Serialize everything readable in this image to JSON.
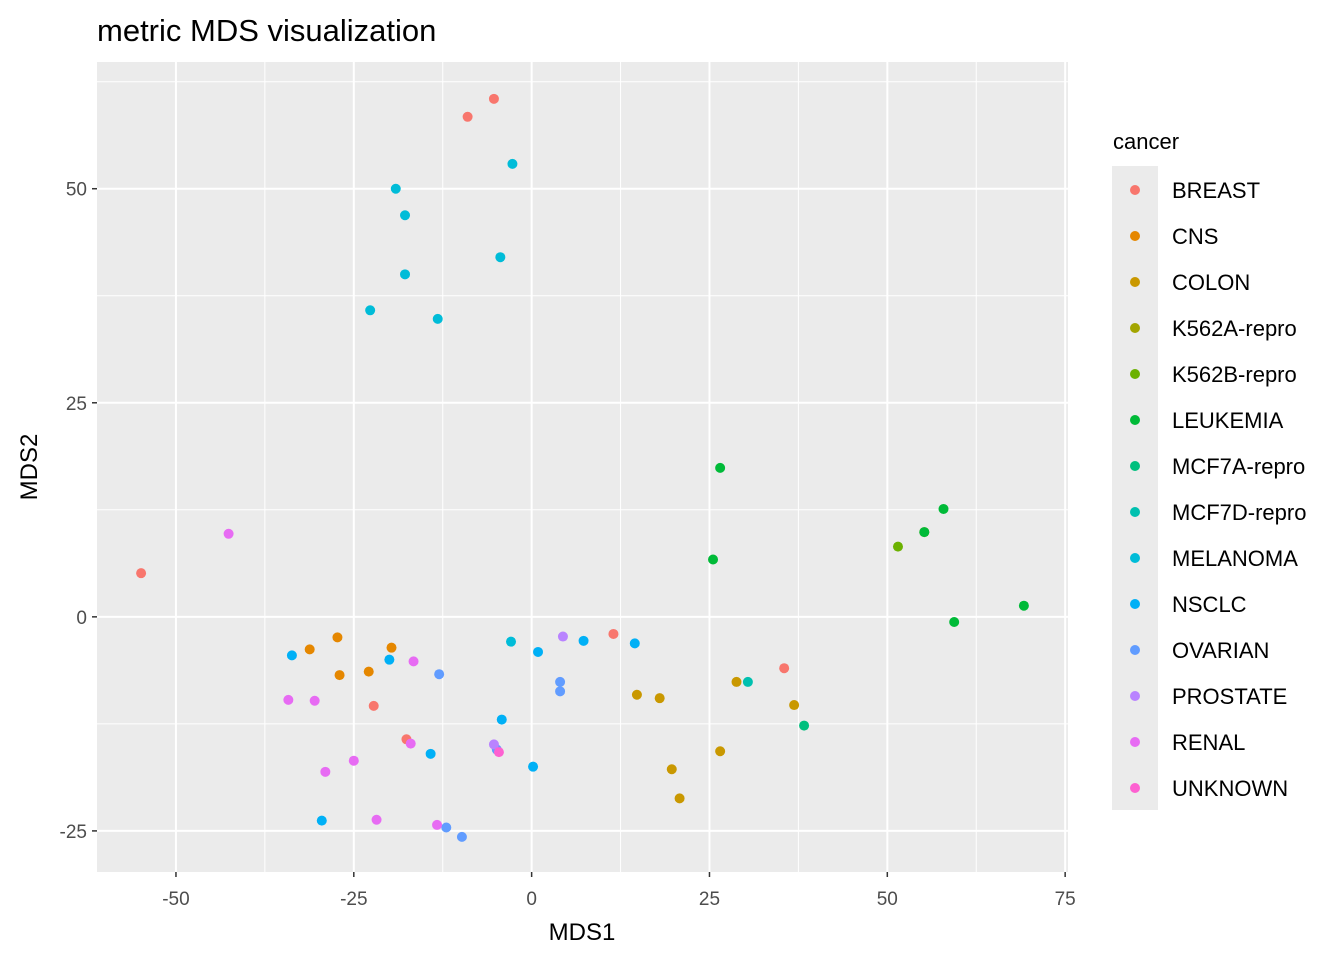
{
  "chart_data": {
    "type": "scatter",
    "title": "metric MDS visualization",
    "xlabel": "MDS1",
    "ylabel": "MDS2",
    "xlim": [
      -61.1,
      75.4
    ],
    "ylim": [
      -29.8,
      64.8
    ],
    "xticks": [
      -50,
      -25,
      0,
      25,
      50,
      75
    ],
    "yticks": [
      -25,
      0,
      25,
      50
    ],
    "grid": true,
    "legend": {
      "title": "cancer",
      "placement": "right"
    },
    "series": [
      {
        "name": "BREAST",
        "color": "#F8766D",
        "points": [
          [
            -5.3,
            60.5
          ],
          [
            -9.0,
            58.4
          ],
          [
            -54.9,
            5.1
          ],
          [
            -22.2,
            -10.4
          ],
          [
            -17.6,
            -14.3
          ],
          [
            11.5,
            -2.0
          ],
          [
            35.5,
            -6.0
          ]
        ]
      },
      {
        "name": "CNS",
        "color": "#E58700",
        "points": [
          [
            -31.2,
            -3.8
          ],
          [
            -27.3,
            -2.4
          ],
          [
            -19.7,
            -3.6
          ],
          [
            -27.0,
            -6.8
          ],
          [
            -22.9,
            -6.4
          ]
        ]
      },
      {
        "name": "COLON",
        "color": "#C99800",
        "points": [
          [
            14.8,
            -9.1
          ],
          [
            18.0,
            -9.5
          ],
          [
            28.8,
            -7.6
          ],
          [
            36.9,
            -10.3
          ],
          [
            26.5,
            -15.7
          ],
          [
            19.7,
            -17.8
          ],
          [
            20.8,
            -21.2
          ]
        ]
      },
      {
        "name": "K562A-repro",
        "color": "#A3A500",
        "points": [
          [
            55.2,
            9.9
          ]
        ]
      },
      {
        "name": "K562B-repro",
        "color": "#6BB100",
        "points": [
          [
            51.5,
            8.2
          ]
        ]
      },
      {
        "name": "LEUKEMIA",
        "color": "#00BA38",
        "points": [
          [
            26.5,
            17.4
          ],
          [
            25.5,
            6.7
          ],
          [
            57.9,
            12.6
          ],
          [
            55.2,
            9.9
          ],
          [
            69.2,
            1.3
          ],
          [
            59.4,
            -0.6
          ]
        ]
      },
      {
        "name": "MCF7A-repro",
        "color": "#00BF7D",
        "points": [
          [
            38.3,
            -12.7
          ]
        ]
      },
      {
        "name": "MCF7D-repro",
        "color": "#00C0AF",
        "points": [
          [
            30.4,
            -7.6
          ]
        ]
      },
      {
        "name": "MELANOMA",
        "color": "#00BCD8",
        "points": [
          [
            -2.7,
            52.9
          ],
          [
            -19.1,
            50.0
          ],
          [
            -17.8,
            46.9
          ],
          [
            -4.4,
            42.0
          ],
          [
            -17.8,
            40.0
          ],
          [
            -22.7,
            35.8
          ],
          [
            -13.2,
            34.8
          ],
          [
            -2.9,
            -2.9
          ]
        ]
      },
      {
        "name": "NSCLC",
        "color": "#00B0F6",
        "points": [
          [
            -33.7,
            -4.5
          ],
          [
            -20.0,
            -5.0
          ],
          [
            0.9,
            -4.1
          ],
          [
            7.3,
            -2.8
          ],
          [
            14.5,
            -3.1
          ],
          [
            -4.2,
            -12.0
          ],
          [
            -14.2,
            -16.0
          ],
          [
            0.2,
            -17.5
          ],
          [
            -29.5,
            -23.8
          ]
        ]
      },
      {
        "name": "OVARIAN",
        "color": "#619CFF",
        "points": [
          [
            -13.0,
            -6.7
          ],
          [
            4.0,
            -7.6
          ],
          [
            4.0,
            -8.7
          ],
          [
            -4.9,
            -15.5
          ],
          [
            -12.0,
            -24.6
          ],
          [
            -9.8,
            -25.7
          ]
        ]
      },
      {
        "name": "PROSTATE",
        "color": "#B983FF",
        "points": [
          [
            4.4,
            -2.3
          ],
          [
            -5.3,
            -14.9
          ]
        ]
      },
      {
        "name": "RENAL",
        "color": "#E76BF3",
        "points": [
          [
            -42.6,
            9.7
          ],
          [
            -16.6,
            -5.2
          ],
          [
            -34.2,
            -9.7
          ],
          [
            -30.5,
            -9.8
          ],
          [
            -17.0,
            -14.8
          ],
          [
            -29.0,
            -18.1
          ],
          [
            -25.0,
            -16.8
          ],
          [
            -21.8,
            -23.7
          ],
          [
            -13.3,
            -24.3
          ]
        ]
      },
      {
        "name": "UNKNOWN",
        "color": "#FD61D1",
        "points": [
          [
            -4.6,
            -15.8
          ]
        ]
      }
    ]
  }
}
